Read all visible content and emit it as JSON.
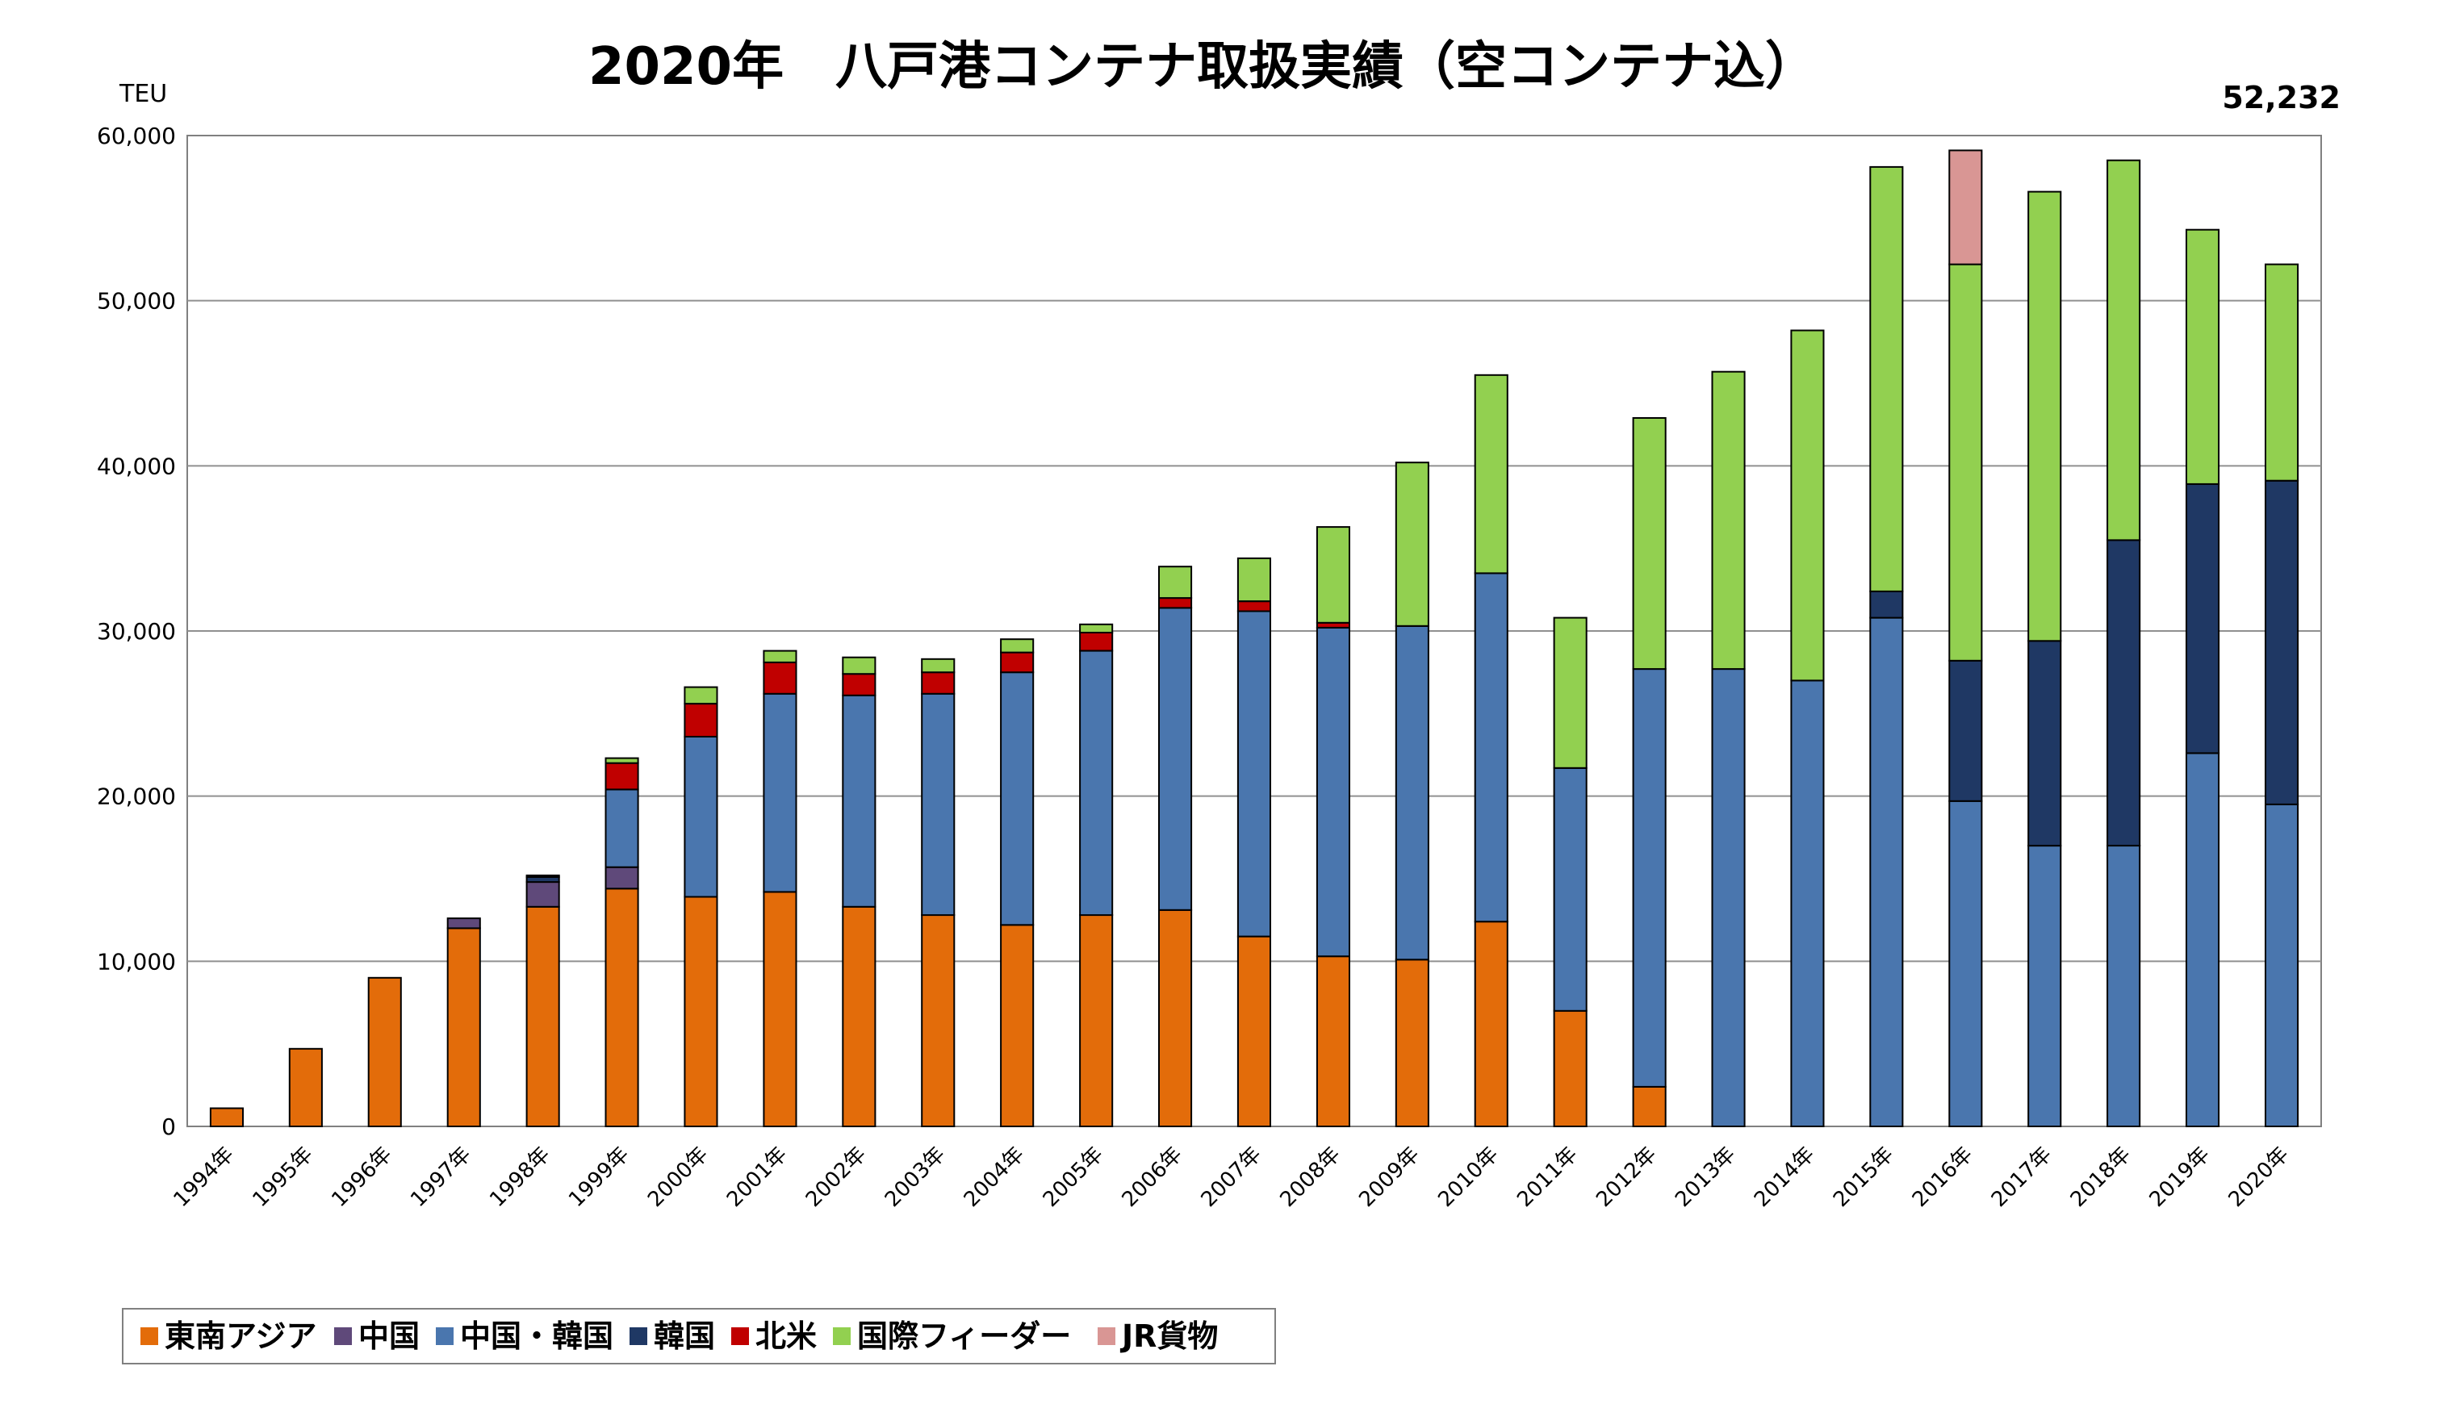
{
  "chart_data": {
    "type": "bar",
    "stacked": true,
    "title": "2020年　八戸港コンテナ取扱実績（空コンテナ込）",
    "ylabel": "TEU",
    "annotation": "52,232",
    "ylim": [
      0,
      60000
    ],
    "yticks": [
      0,
      10000,
      20000,
      30000,
      40000,
      50000,
      60000
    ],
    "ytick_labels": [
      "0",
      "10,000",
      "20,000",
      "30,000",
      "40,000",
      "50,000",
      "60,000"
    ],
    "grid": true,
    "legend_position": "bottom-left",
    "categories": [
      "1994年",
      "1995年",
      "1996年",
      "1997年",
      "1998年",
      "1999年",
      "2000年",
      "2001年",
      "2002年",
      "2003年",
      "2004年",
      "2005年",
      "2006年",
      "2007年",
      "2008年",
      "2009年",
      "2010年",
      "2011年",
      "2012年",
      "2013年",
      "2014年",
      "2015年",
      "2016年",
      "2017年",
      "2018年",
      "2019年",
      "2020年"
    ],
    "series": [
      {
        "name": "東南アジア",
        "color": "#E36C0A",
        "values": [
          1100,
          4700,
          9000,
          12000,
          13300,
          14400,
          13900,
          14200,
          13300,
          12800,
          12200,
          12800,
          13100,
          11500,
          10300,
          10100,
          12400,
          7000,
          2400,
          0,
          0,
          0,
          0,
          0,
          0,
          0,
          0
        ]
      },
      {
        "name": "中国",
        "color": "#5F497A",
        "values": [
          0,
          0,
          0,
          600,
          1500,
          1300,
          0,
          0,
          0,
          0,
          0,
          0,
          0,
          0,
          0,
          0,
          0,
          0,
          0,
          0,
          0,
          0,
          0,
          0,
          0,
          0,
          0
        ]
      },
      {
        "name": "中国・韓国",
        "color": "#4A76AE",
        "values": [
          0,
          0,
          0,
          0,
          0,
          4700,
          9700,
          12000,
          12800,
          13400,
          15300,
          16000,
          18300,
          19700,
          19900,
          20200,
          21100,
          14700,
          25300,
          27700,
          27000,
          30800,
          19700,
          17000,
          17000,
          22600,
          19500
        ]
      },
      {
        "name": "韓国",
        "color": "#1F3864",
        "values": [
          0,
          0,
          0,
          0,
          300,
          0,
          0,
          0,
          0,
          0,
          0,
          0,
          0,
          0,
          0,
          0,
          0,
          0,
          0,
          0,
          0,
          1600,
          8500,
          12400,
          18500,
          16300,
          19600
        ]
      },
      {
        "name": "北米",
        "color": "#C00000",
        "values": [
          0,
          0,
          0,
          0,
          100,
          1600,
          2000,
          1900,
          1300,
          1300,
          1200,
          1100,
          600,
          600,
          300,
          0,
          0,
          0,
          0,
          0,
          0,
          0,
          0,
          0,
          0,
          0,
          0
        ]
      },
      {
        "name": "国際フィーダー",
        "color": "#92D050",
        "values": [
          0,
          0,
          0,
          0,
          0,
          300,
          1000,
          700,
          1000,
          800,
          800,
          500,
          1900,
          2600,
          5800,
          9900,
          12000,
          9100,
          15200,
          18000,
          21200,
          25700,
          24000,
          27200,
          23000,
          15400,
          13100
        ]
      },
      {
        "name": "JR貨物",
        "color": "#D99694",
        "values": [
          0,
          0,
          0,
          0,
          0,
          0,
          0,
          0,
          0,
          0,
          0,
          0,
          0,
          0,
          0,
          0,
          0,
          0,
          0,
          0,
          0,
          0,
          6900,
          0,
          0,
          0,
          0
        ]
      }
    ]
  }
}
